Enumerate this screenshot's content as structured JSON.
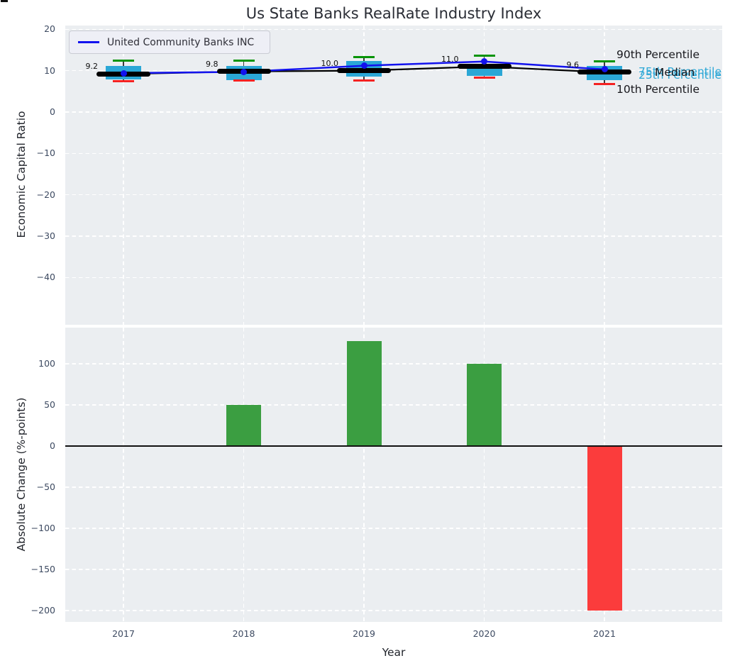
{
  "figure": {
    "title": "Us State Banks RealRate Industry Index",
    "background": "#ffffff",
    "axes_background": "#ebeef1"
  },
  "chart_data": [
    {
      "type": "box",
      "title": "Us State Banks RealRate Industry Index",
      "ylabel": "Economic Capital Ratio",
      "xlabel": "",
      "categories": [
        "2017",
        "2018",
        "2019",
        "2020",
        "2021"
      ],
      "ytick_labels": [
        "20",
        "10",
        "0",
        "−10",
        "−20",
        "−30",
        "−40"
      ],
      "ytick_values": [
        20,
        10,
        0,
        -10,
        -20,
        -30,
        -40
      ],
      "ylim": [
        -51.4,
        20.9
      ],
      "grid": "white-dashed",
      "legend": {
        "label": "United Community Banks INC",
        "color": "#1212ee",
        "position": "upper-left"
      },
      "line_series": [
        {
          "name": "United Community Banks INC",
          "color": "#1212ee",
          "marker": "circle",
          "values": [
            9.4,
            9.7,
            11.2,
            12.2,
            10.3
          ]
        },
        {
          "name": "Median",
          "color": "#000000",
          "marker": "thick-segment",
          "values": [
            9.2,
            9.8,
            10.0,
            11.0,
            9.6
          ]
        }
      ],
      "box_stats": {
        "p90": [
          12.4,
          12.5,
          13.2,
          13.7,
          12.3
        ],
        "p75": [
          11.2,
          11.1,
          12.3,
          11.4,
          11.1
        ],
        "median": [
          9.2,
          9.8,
          10.0,
          11.0,
          9.6
        ],
        "p25": [
          7.8,
          7.7,
          8.6,
          8.8,
          7.7
        ],
        "p10": [
          7.5,
          7.6,
          7.7,
          8.3,
          6.8
        ]
      },
      "annotations": [
        "9.2",
        "9.8",
        "10.0",
        "11.0",
        "9.6"
      ],
      "side_labels": [
        {
          "text": "90th Percentile",
          "color": "#17171c"
        },
        {
          "text": "75th Percentile",
          "color": "#2ba7d6"
        },
        {
          "text": "25th Percentile",
          "color": "#2ba7d6"
        },
        {
          "text": "Median",
          "color": "#17171c"
        },
        {
          "text": "10th Percentile",
          "color": "#17171c"
        }
      ],
      "colors": {
        "box": "#2ba7d6",
        "cap_high": "#079407",
        "cap_low": "#f42222",
        "whisker": "#3c3c3c",
        "median": "#000000"
      }
    },
    {
      "type": "bar",
      "ylabel": "Absolute Change (%-points)",
      "xlabel": "Year",
      "categories": [
        "2017",
        "2018",
        "2019",
        "2020",
        "2021"
      ],
      "values": [
        0,
        50,
        128,
        100,
        -200
      ],
      "bar_colors": [
        null,
        "#3b9e41",
        "#3b9e41",
        "#3b9e41",
        "#fb3c3c"
      ],
      "ytick_labels": [
        "100",
        "50",
        "0",
        "−50",
        "−100",
        "−150",
        "−200"
      ],
      "ytick_values": [
        100,
        50,
        0,
        -50,
        -100,
        -150,
        -200
      ],
      "ylim": [
        -214,
        144
      ],
      "zero_line": true,
      "grid": "white-dashed"
    }
  ]
}
